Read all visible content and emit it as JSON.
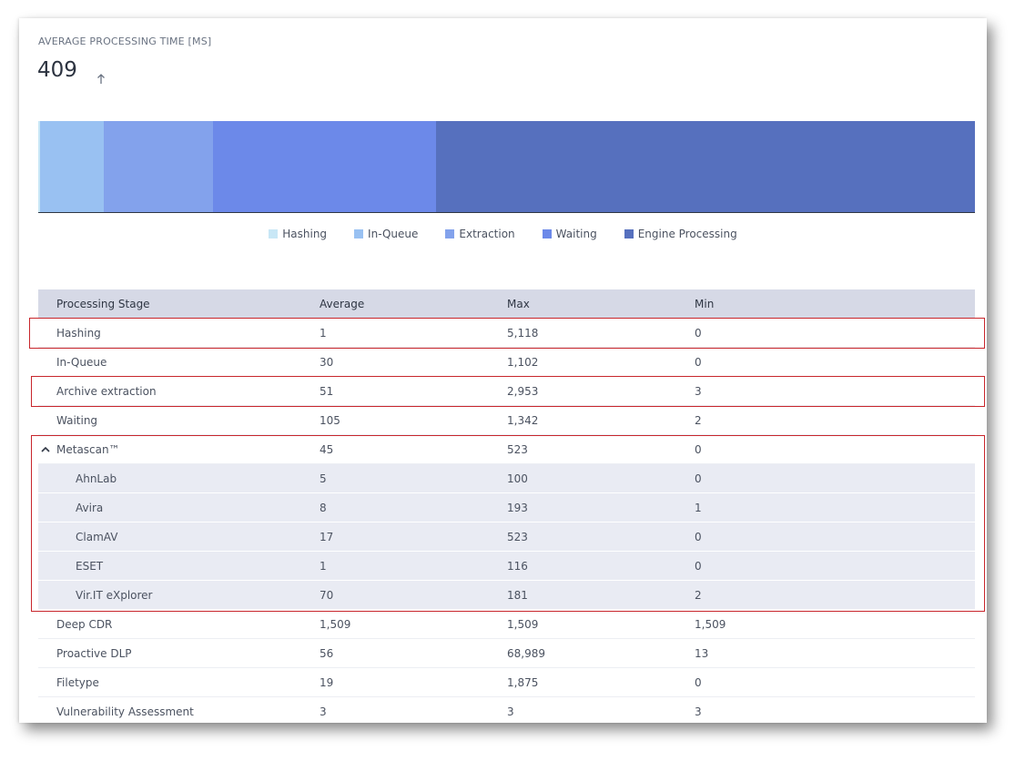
{
  "metric": {
    "title": "AVERAGE PROCESSING TIME [MS]",
    "value": "409",
    "trend_icon": "arrow-up-icon"
  },
  "stage_bar": {
    "segments": [
      {
        "stage": "Hashing",
        "value": 1,
        "color": "#c8e7f6"
      },
      {
        "stage": "In-Queue",
        "value": 30,
        "color": "#99c1f2"
      },
      {
        "stage": "Extraction",
        "value": 51,
        "color": "#83a2ec"
      },
      {
        "stage": "Waiting",
        "value": 105,
        "color": "#6c89e9"
      },
      {
        "stage": "Engine Processing",
        "value": 253,
        "color": "#5670be"
      }
    ]
  },
  "legend": [
    {
      "label": "Hashing",
      "color": "#c8e7f6"
    },
    {
      "label": "In-Queue",
      "color": "#99c1f2"
    },
    {
      "label": "Extraction",
      "color": "#83a2ec"
    },
    {
      "label": "Waiting",
      "color": "#6c89e9"
    },
    {
      "label": "Engine Processing",
      "color": "#5670be"
    }
  ],
  "table": {
    "headers": [
      "Processing Stage",
      "Average",
      "Max",
      "Min"
    ],
    "rows": [
      {
        "stage": "Hashing",
        "avg": "1",
        "max": "5,118",
        "min": "0"
      },
      {
        "stage": "In-Queue",
        "avg": "30",
        "max": "1,102",
        "min": "0"
      },
      {
        "stage": "Archive extraction",
        "avg": "51",
        "max": "2,953",
        "min": "3"
      },
      {
        "stage": "Waiting",
        "avg": "105",
        "max": "1,342",
        "min": "2"
      },
      {
        "stage": "Metascan™",
        "avg": "45",
        "max": "523",
        "min": "0"
      },
      {
        "stage": "AhnLab",
        "avg": "5",
        "max": "100",
        "min": "0"
      },
      {
        "stage": "Avira",
        "avg": "8",
        "max": "193",
        "min": "1"
      },
      {
        "stage": "ClamAV",
        "avg": "17",
        "max": "523",
        "min": "0"
      },
      {
        "stage": "ESET",
        "avg": "1",
        "max": "116",
        "min": "0"
      },
      {
        "stage": "Vir.IT eXplorer",
        "avg": "70",
        "max": "181",
        "min": "2"
      },
      {
        "stage": "Deep CDR",
        "avg": "1,509",
        "max": "1,509",
        "min": "1,509"
      },
      {
        "stage": "Proactive DLP",
        "avg": "56",
        "max": "68,989",
        "min": "13"
      },
      {
        "stage": "Filetype",
        "avg": "19",
        "max": "1,875",
        "min": "0"
      },
      {
        "stage": "Vulnerability Assessment",
        "avg": "3",
        "max": "3",
        "min": "3"
      }
    ]
  },
  "highlight_color": "#c8262c"
}
